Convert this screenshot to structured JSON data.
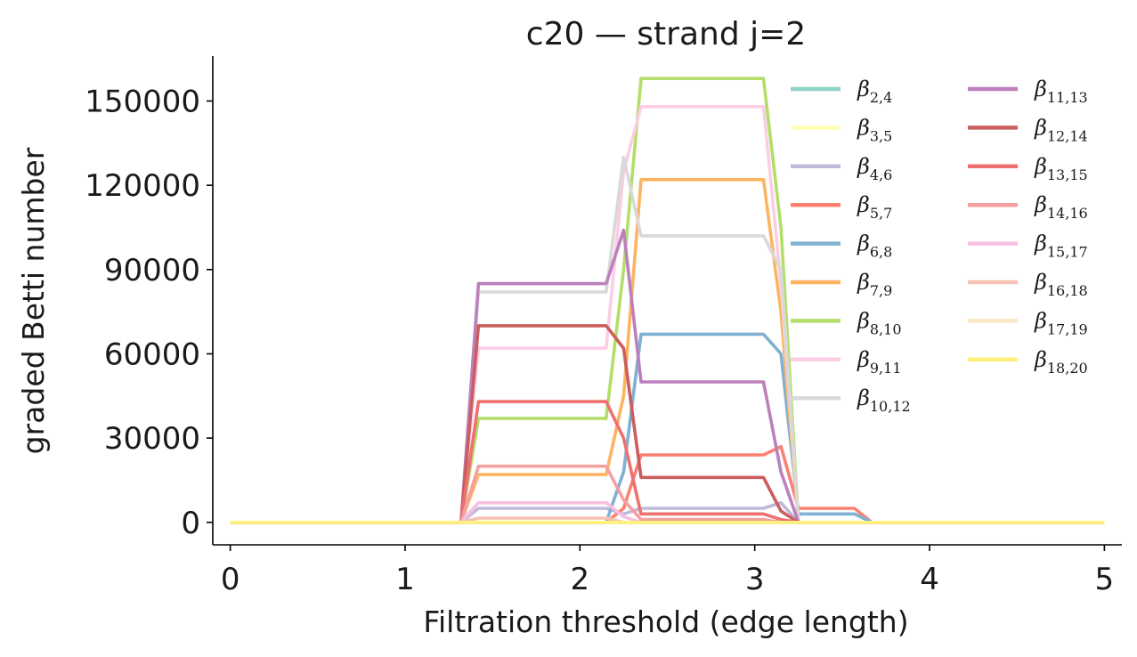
{
  "chart_data": {
    "type": "line",
    "title": "c20 — strand j=2",
    "xlabel": "Filtration threshold (edge length)",
    "ylabel": "graded Betti number",
    "xlim": [
      -0.1,
      5.1
    ],
    "ylim": [
      -8000,
      166000
    ],
    "xticks": [
      0,
      1,
      2,
      3,
      4,
      5
    ],
    "yticks": [
      0,
      30000,
      60000,
      90000,
      120000,
      150000
    ],
    "grid": false,
    "legend_position": "top-right, two columns",
    "series": [
      {
        "name": "β2,4",
        "sub": "2,4",
        "color": "#8dd3c7",
        "x": [
          0,
          5
        ],
        "y": [
          0,
          0
        ]
      },
      {
        "name": "β3,5",
        "sub": "3,5",
        "color": "#ffffb3",
        "x": [
          0,
          5
        ],
        "y": [
          0,
          0
        ]
      },
      {
        "name": "β4,6",
        "sub": "4,6",
        "color": "#bebada",
        "x": [
          0,
          1.32,
          1.42,
          2.15,
          2.25,
          2.35,
          3.05,
          3.15,
          3.25,
          5
        ],
        "y": [
          0,
          0,
          5000,
          5000,
          3000,
          5000,
          5000,
          7000,
          0,
          0
        ]
      },
      {
        "name": "β5,7",
        "sub": "5,7",
        "color": "#fb8072",
        "x": [
          0,
          2.15,
          2.25,
          2.35,
          3.05,
          3.15,
          3.25,
          3.57,
          3.67,
          5
        ],
        "y": [
          0,
          0,
          5000,
          24000,
          24000,
          27000,
          5000,
          5000,
          0,
          0
        ]
      },
      {
        "name": "β6,8",
        "sub": "6,8",
        "color": "#80b1d3",
        "x": [
          0,
          2.15,
          2.25,
          2.35,
          3.05,
          3.15,
          3.25,
          3.57,
          3.67,
          5
        ],
        "y": [
          0,
          0,
          18000,
          67000,
          67000,
          60000,
          3000,
          3000,
          0,
          0
        ]
      },
      {
        "name": "β7,9",
        "sub": "7,9",
        "color": "#fdb462",
        "x": [
          0,
          1.32,
          1.42,
          2.15,
          2.25,
          2.35,
          3.05,
          3.15,
          3.25,
          5
        ],
        "y": [
          0,
          0,
          17000,
          17000,
          45000,
          122000,
          122000,
          75000,
          0,
          0
        ]
      },
      {
        "name": "β8,10",
        "sub": "8,10",
        "color": "#b3de69",
        "x": [
          0,
          1.32,
          1.42,
          2.15,
          2.25,
          2.35,
          3.05,
          3.15,
          3.25,
          5
        ],
        "y": [
          0,
          0,
          37000,
          37000,
          90000,
          158000,
          158000,
          105000,
          0,
          0
        ]
      },
      {
        "name": "β9,11",
        "sub": "9,11",
        "color": "#fccde5",
        "x": [
          0,
          1.32,
          1.42,
          2.15,
          2.25,
          2.35,
          3.05,
          3.15,
          3.25,
          5
        ],
        "y": [
          0,
          0,
          62000,
          62000,
          125000,
          148000,
          148000,
          85000,
          0,
          0
        ]
      },
      {
        "name": "β10,12",
        "sub": "10,12",
        "color": "#d9d9d9",
        "x": [
          0,
          1.32,
          1.42,
          2.15,
          2.25,
          2.35,
          3.05,
          3.15,
          3.25,
          5
        ],
        "y": [
          0,
          0,
          82000,
          82000,
          130000,
          102000,
          102000,
          90000,
          0,
          0
        ]
      },
      {
        "name": "β11,13",
        "sub": "11,13",
        "color": "#bc80bd",
        "x": [
          0,
          1.32,
          1.42,
          2.15,
          2.25,
          2.35,
          3.05,
          3.15,
          3.25,
          5
        ],
        "y": [
          0,
          0,
          85000,
          85000,
          104000,
          50000,
          50000,
          18000,
          0,
          0
        ]
      },
      {
        "name": "β12,14",
        "sub": "12,14",
        "color": "#cb5e5e",
        "x": [
          0,
          1.32,
          1.42,
          2.15,
          2.25,
          2.35,
          3.05,
          3.15,
          3.25,
          5
        ],
        "y": [
          0,
          0,
          70000,
          70000,
          62000,
          16000,
          16000,
          4000,
          0,
          0
        ]
      },
      {
        "name": "β13,15",
        "sub": "13,15",
        "color": "#ee7070",
        "x": [
          0,
          1.32,
          1.42,
          2.15,
          2.25,
          2.35,
          3.05,
          3.15,
          3.25,
          5
        ],
        "y": [
          0,
          0,
          43000,
          43000,
          30000,
          3000,
          3000,
          1000,
          0,
          0
        ]
      },
      {
        "name": "β14,16",
        "sub": "14,16",
        "color": "#f4a0a0",
        "x": [
          0,
          1.32,
          1.42,
          2.15,
          2.25,
          2.35,
          3.05,
          3.15,
          3.25,
          5
        ],
        "y": [
          0,
          0,
          20000,
          20000,
          8000,
          1000,
          1000,
          0,
          0,
          0
        ]
      },
      {
        "name": "β15,17",
        "sub": "15,17",
        "color": "#f9bfe0",
        "x": [
          0,
          1.32,
          1.42,
          2.15,
          2.25,
          2.35,
          3.05,
          5
        ],
        "y": [
          0,
          0,
          7000,
          7000,
          2000,
          0,
          0,
          0
        ]
      },
      {
        "name": "β16,18",
        "sub": "16,18",
        "color": "#f6c2b4",
        "x": [
          0,
          1.32,
          1.42,
          2.15,
          2.25,
          5
        ],
        "y": [
          0,
          0,
          1500,
          1500,
          0,
          0
        ]
      },
      {
        "name": "β17,19",
        "sub": "17,19",
        "color": "#fbe6c4",
        "x": [
          0,
          5
        ],
        "y": [
          0,
          0
        ]
      },
      {
        "name": "β18,20",
        "sub": "18,20",
        "color": "#fff27a",
        "x": [
          0,
          5
        ],
        "y": [
          0,
          0
        ]
      }
    ]
  }
}
